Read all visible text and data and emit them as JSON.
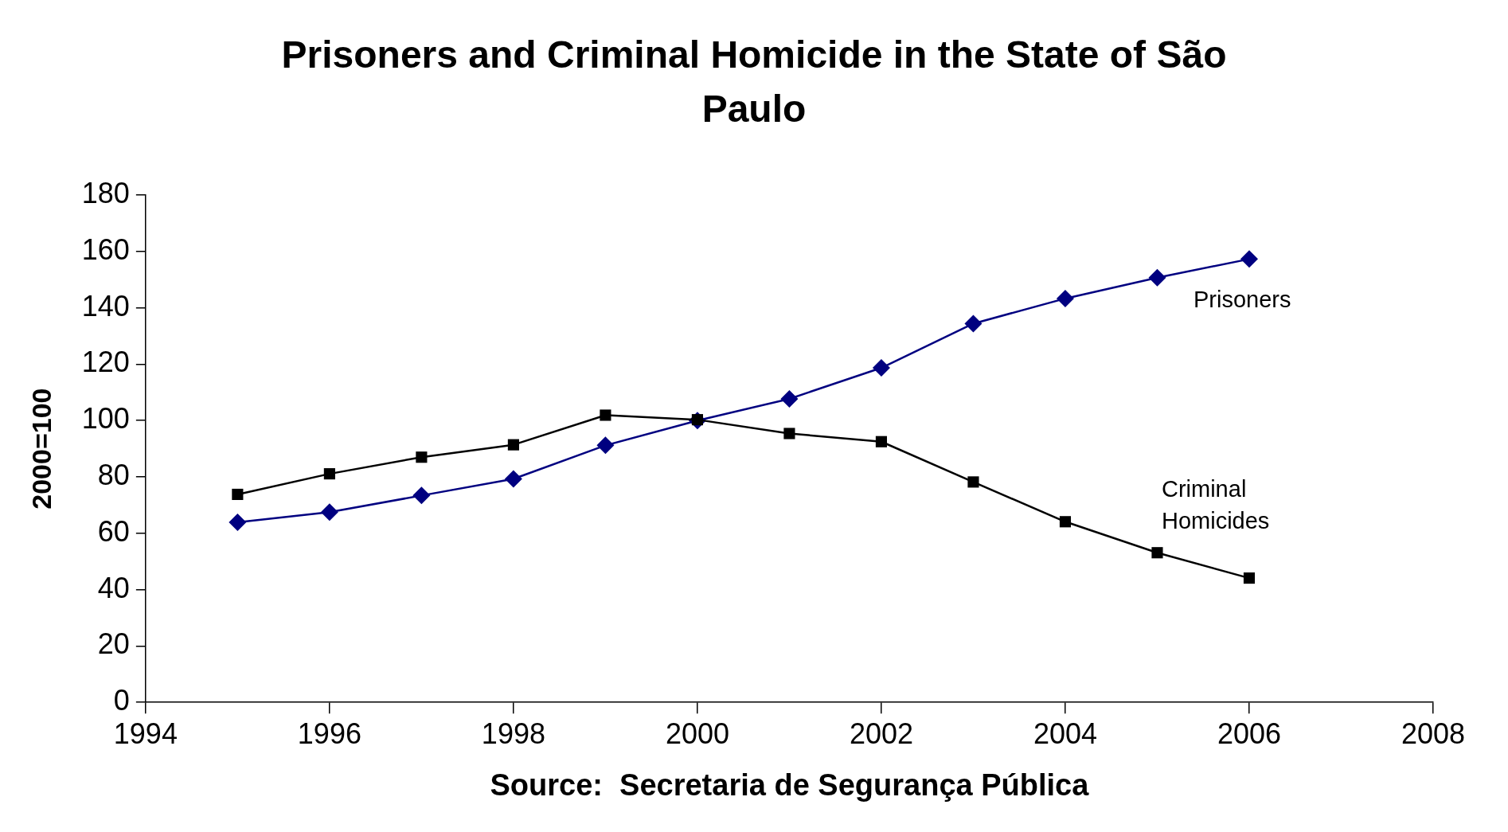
{
  "chart_data": {
    "type": "line",
    "title": "Prisoners and Criminal Homicide in the State of São Paulo",
    "ylabel": "2000=100",
    "annotations": [
      "Source:  Secretaria de Segurança Pública"
    ],
    "x": [
      1995,
      1996,
      1997,
      1998,
      1999,
      2000,
      2001,
      2002,
      2003,
      2004,
      2005,
      2006
    ],
    "series": [
      {
        "name": "Prisoners",
        "color": "#000080",
        "marker": "diamond",
        "values": [
          63.9,
          67.5,
          73.4,
          79.3,
          91.2,
          100,
          107.7,
          118.7,
          134.4,
          143.3,
          150.7,
          157.3
        ]
      },
      {
        "name": "Criminal Homicides",
        "color": "#000000",
        "marker": "square",
        "values": [
          73.8,
          81.1,
          87.0,
          91.4,
          101.9,
          100.3,
          95.4,
          92.5,
          78.2,
          64.1,
          53.1,
          44.1
        ]
      }
    ],
    "xlim": [
      1994,
      2008
    ],
    "xticks": [
      1994,
      1996,
      1998,
      2000,
      2002,
      2004,
      2006,
      2008
    ],
    "ylim": [
      0,
      180
    ],
    "yticks": [
      0,
      20,
      40,
      60,
      80,
      100,
      120,
      140,
      160,
      180
    ],
    "legend": false,
    "line_style": "solid"
  }
}
